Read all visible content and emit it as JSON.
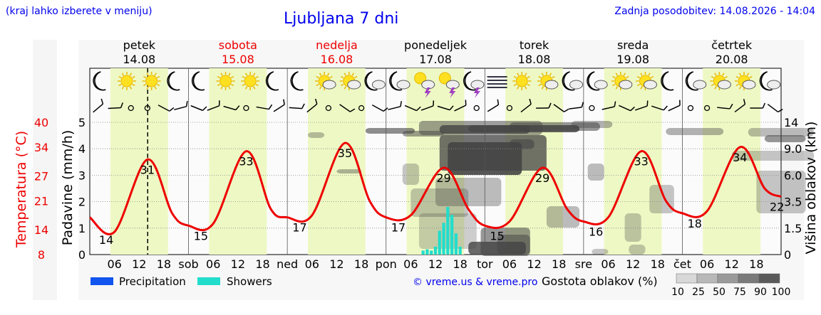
{
  "header": {
    "hint": "(kraj lahko izberete v meniju)",
    "title": "Ljubljana 7 dni",
    "updated": "Zadnja posodobitev: 14.08.2026 - 14:04"
  },
  "days": [
    {
      "name": "petek",
      "date": "14.08",
      "color": "#000000",
      "abbr": ""
    },
    {
      "name": "sobota",
      "date": "15.08",
      "color": "#ee0000",
      "abbr": "sob"
    },
    {
      "name": "nedelja",
      "date": "16.08",
      "color": "#ee0000",
      "abbr": "ned"
    },
    {
      "name": "ponedeljek",
      "date": "17.08",
      "color": "#000000",
      "abbr": "pon"
    },
    {
      "name": "torek",
      "date": "18.08",
      "color": "#000000",
      "abbr": "tor"
    },
    {
      "name": "sreda",
      "date": "19.08",
      "color": "#000000",
      "abbr": "sre"
    },
    {
      "name": "četrtek",
      "date": "20.08",
      "color": "#000000",
      "abbr": "čet"
    }
  ],
  "hour_ticks": [
    "06",
    "12",
    "18"
  ],
  "axes": {
    "left_label": "Padavine (mm/h)",
    "temp_label": "Temperatura (°C)",
    "right_label": "Višina oblakov (km)",
    "precip_ticks": [
      "0",
      "1",
      "2",
      "3",
      "4",
      "5"
    ],
    "temp_ticks": [
      "8",
      "14",
      "21",
      "27",
      "34",
      "40"
    ],
    "height_ticks": [
      "0",
      "1.5",
      "3.5",
      "6.0",
      "9.0",
      "14"
    ]
  },
  "legend": {
    "precipitation": "Precipitation",
    "showers": "Showers",
    "precip_color": "#1155ee",
    "showers_color": "#22ddcc",
    "copyright": "© vreme.us & vreme.pro",
    "cloud_label": "Gostota oblakov (%)",
    "cloud_levels": [
      "10",
      "25",
      "50",
      "75",
      "90",
      "100"
    ]
  },
  "colors": {
    "day_band": "#eef8c4",
    "temperature": "#ee0000",
    "cloud": "#444444"
  },
  "icons": [
    "moon-icon",
    "sun-icon",
    "sun-icon",
    "moon-icon",
    "moon-icon",
    "sun-icon",
    "sun-icon",
    "moon-icon",
    "moon-icon",
    "sun-cloud-icon",
    "sun-cloud-icon",
    "moon-cloud-icon",
    "moon-cloud-icon",
    "storm-icon",
    "storm-icon",
    "moon-storm-icon",
    "fog-icon",
    "sun-icon",
    "sun-cloud-icon",
    "moon-cloud-icon",
    "moon-cloud-icon",
    "sun-cloud-icon",
    "sun-cloud-icon",
    "moon-icon",
    "moon-cloud-icon",
    "sun-cloud-icon",
    "sun-cloud-icon",
    "moon-cloud-icon"
  ],
  "chart_data": {
    "type": "line",
    "x_unit": "hours from 14.08 00:00",
    "temperature": {
      "x": [
        0,
        6,
        14,
        20,
        24,
        30,
        38,
        44,
        48,
        54,
        62,
        68,
        72,
        78,
        86,
        92,
        96,
        102,
        110,
        116,
        120,
        126,
        134,
        140,
        144,
        150,
        158,
        164,
        168
      ],
      "y": [
        17,
        13.5,
        31,
        18,
        15,
        15.5,
        33,
        19,
        17,
        17.5,
        35,
        21,
        17,
        17.5,
        29,
        19,
        15,
        16,
        29,
        19,
        16,
        17,
        33,
        21,
        18,
        18.5,
        34,
        24,
        22
      ],
      "ylim": [
        8,
        40
      ]
    },
    "labels": [
      {
        "x": 4,
        "text": "14",
        "value": 14
      },
      {
        "x": 14,
        "text": "31",
        "value": 31
      },
      {
        "x": 27,
        "text": "15",
        "value": 15
      },
      {
        "x": 38,
        "text": "33",
        "value": 33
      },
      {
        "x": 51,
        "text": "17",
        "value": 17
      },
      {
        "x": 62,
        "text": "35",
        "value": 35
      },
      {
        "x": 75,
        "text": "17",
        "value": 17
      },
      {
        "x": 86,
        "text": "29",
        "value": 29
      },
      {
        "x": 99,
        "text": "15",
        "value": 15
      },
      {
        "x": 110,
        "text": "29",
        "value": 29
      },
      {
        "x": 123,
        "text": "16",
        "value": 16
      },
      {
        "x": 134,
        "text": "33",
        "value": 33
      },
      {
        "x": 147,
        "text": "18",
        "value": 18
      },
      {
        "x": 158,
        "text": "34",
        "value": 34
      },
      {
        "x": 167,
        "text": "22",
        "value": 22
      }
    ],
    "showers": {
      "x": [
        81,
        82,
        83,
        84,
        85,
        86,
        87,
        88,
        89,
        90
      ],
      "values": [
        0.15,
        0.2,
        0.15,
        0.3,
        0.9,
        1.2,
        1.8,
        1.5,
        0.8,
        0.3
      ],
      "ylim": [
        0,
        5
      ]
    },
    "current_time": 14.07
  }
}
